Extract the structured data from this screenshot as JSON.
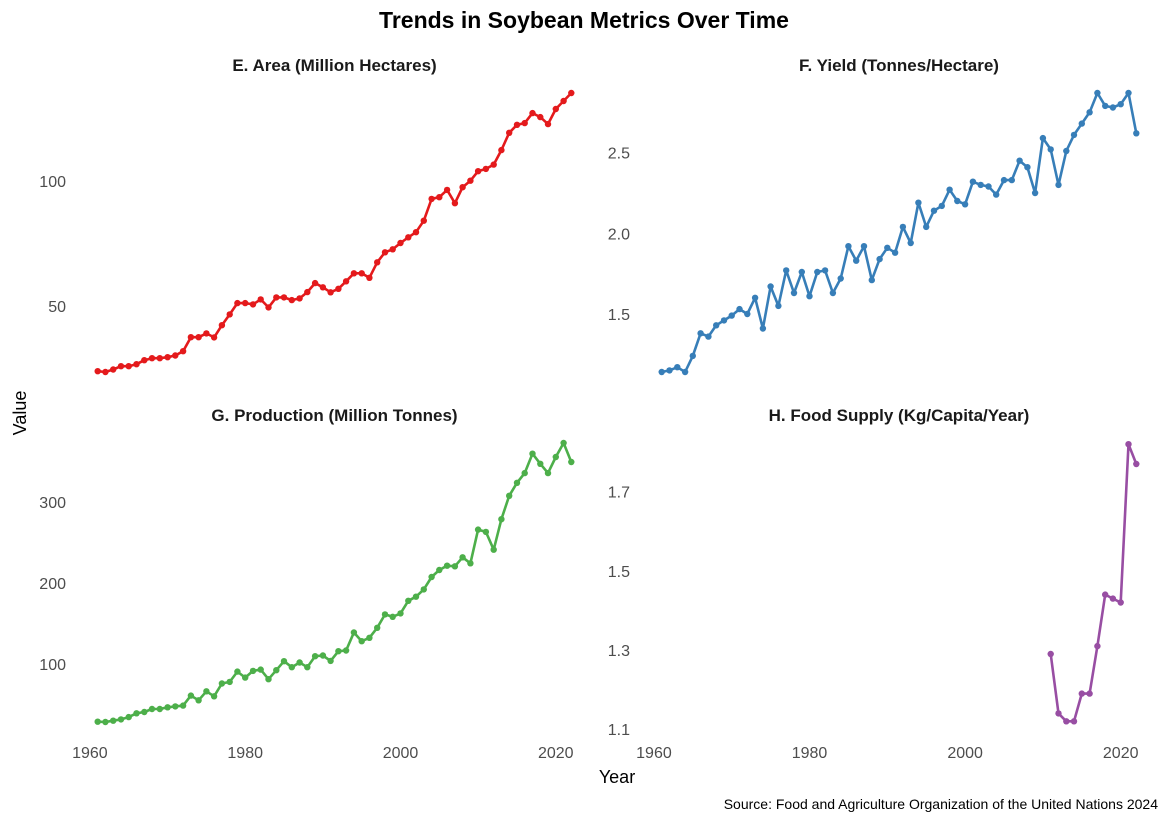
{
  "chart_data": {
    "type": "line",
    "title": "Trends in Soybean Metrics Over Time",
    "xlabel": "Year",
    "ylabel": "Value",
    "caption": "Source: Food and Agriculture Organization of the United Nations 2024",
    "grid": false,
    "xlim": [
      1957.95,
      2025.05
    ],
    "xticks": [
      1960,
      1980,
      2000,
      2020
    ],
    "panels": [
      {
        "title": "E. Area (Million Hectares)",
        "color": "#E41A1C",
        "x_start": 1961,
        "y": [
          24.0,
          23.7,
          24.7,
          26.0,
          26.0,
          26.8,
          28.4,
          29.2,
          29.2,
          29.6,
          30.3,
          32.0,
          37.6,
          37.6,
          39.1,
          37.5,
          42.4,
          46.7,
          51.2,
          51.2,
          50.7,
          52.7,
          49.5,
          53.5,
          53.5,
          52.4,
          53.1,
          55.6,
          59.2,
          57.5,
          55.5,
          56.9,
          59.9,
          63.1,
          63.1,
          61.3,
          67.5,
          71.5,
          72.7,
          75.2,
          77.5,
          79.5,
          84.1,
          92.8,
          93.5,
          96.4,
          91.1,
          97.5,
          100.1,
          103.9,
          104.8,
          106.5,
          112.3,
          119.2,
          122.4,
          123.1,
          127.1,
          125.5,
          122.7,
          128.7,
          131.9,
          135.1
        ],
        "yticks": [
          50,
          100
        ],
        "ylim": [
          18.1,
          140.7
        ]
      },
      {
        "title": "F. Yield (Tonnes/Hectare)",
        "color": "#377EB8",
        "x_start": 1961,
        "y": [
          1.14,
          1.15,
          1.17,
          1.14,
          1.24,
          1.38,
          1.36,
          1.43,
          1.46,
          1.49,
          1.53,
          1.5,
          1.6,
          1.41,
          1.67,
          1.55,
          1.77,
          1.63,
          1.76,
          1.61,
          1.76,
          1.77,
          1.63,
          1.72,
          1.92,
          1.83,
          1.92,
          1.71,
          1.84,
          1.91,
          1.88,
          2.04,
          1.94,
          2.19,
          2.04,
          2.14,
          2.17,
          2.27,
          2.2,
          2.18,
          2.32,
          2.3,
          2.29,
          2.24,
          2.33,
          2.33,
          2.45,
          2.41,
          2.25,
          2.59,
          2.52,
          2.3,
          2.51,
          2.61,
          2.68,
          2.75,
          2.87,
          2.79,
          2.78,
          2.8,
          2.87,
          2.62
        ],
        "yticks": [
          1.5,
          2.0,
          2.5
        ],
        "ytick_labels": [
          "1.5",
          "2.0",
          "2.5"
        ],
        "ylim": [
          1.0535,
          2.9565
        ]
      },
      {
        "title": "G. Production (Million Tonnes)",
        "color": "#4DAF4A",
        "x_start": 1961,
        "y": [
          29.2,
          28.8,
          30.4,
          32.1,
          34.9,
          39.5,
          41.1,
          44.8,
          44.8,
          46.9,
          48.1,
          49.0,
          61.3,
          55.6,
          66.7,
          60.5,
          76.2,
          78.2,
          90.9,
          83.5,
          91.8,
          93.4,
          81.5,
          92.6,
          103.7,
          96.3,
          102.1,
          96.3,
          109.9,
          110.7,
          104.1,
          116.0,
          116.9,
          139.1,
          128.4,
          132.5,
          144.8,
          161.4,
          158.4,
          162.6,
          178.1,
          183.1,
          192.2,
          207.4,
          216.0,
          221.4,
          220.6,
          231.7,
          224.3,
          265.8,
          263.0,
          241.1,
          278.6,
          307.4,
          323.5,
          335.4,
          359.3,
          346.9,
          335.4,
          355.2,
          372.5,
          349.0
        ],
        "yticks": [
          100,
          200,
          300
        ],
        "ylim": [
          11.6,
          389.7
        ]
      },
      {
        "title": "H. Food Supply (Kg/Capita/Year)",
        "color": "#984EA3",
        "x_start": 2011,
        "y": [
          1.29,
          1.14,
          1.12,
          1.12,
          1.19,
          1.19,
          1.31,
          1.44,
          1.43,
          1.42,
          1.82,
          1.77
        ],
        "yticks": [
          1.1,
          1.3,
          1.5,
          1.7
        ],
        "ylim": [
          1.0828,
          1.8583
        ]
      }
    ]
  }
}
